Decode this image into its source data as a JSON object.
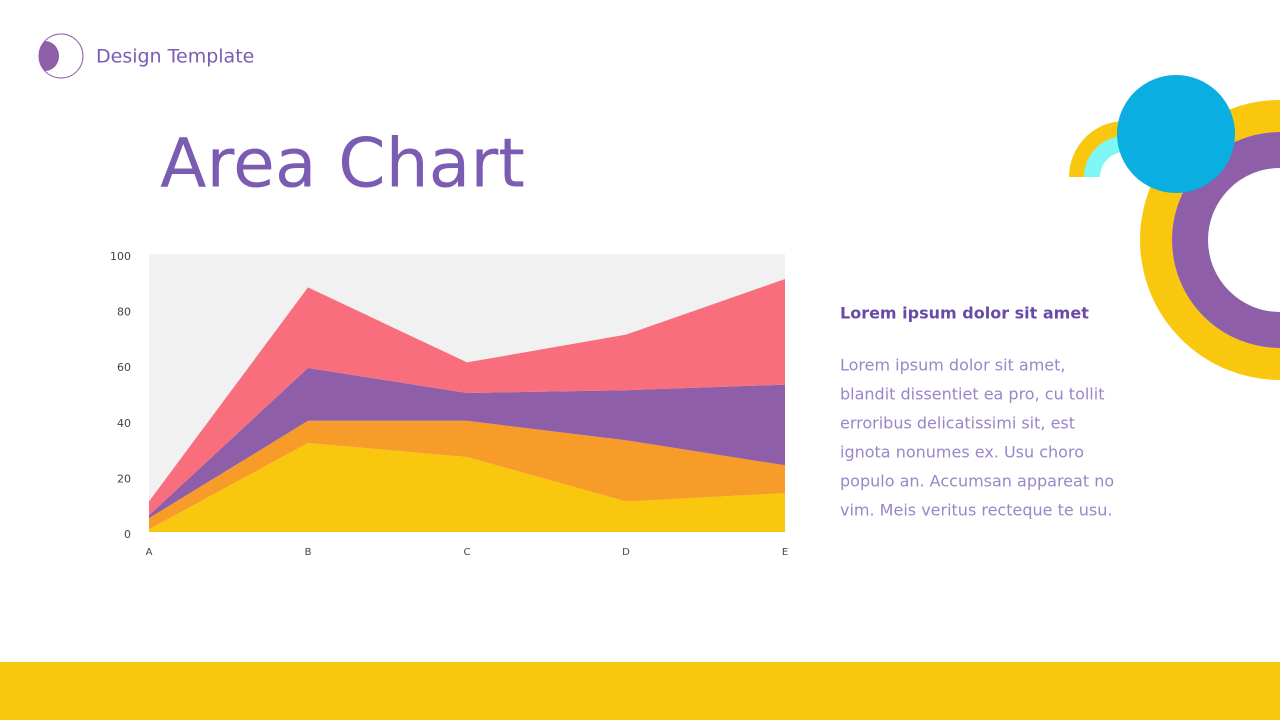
{
  "header": {
    "brand": "Design Template"
  },
  "chart_data": {
    "type": "stacked-area",
    "title": "Area Chart",
    "categories": [
      "A",
      "B",
      "C",
      "D",
      "E"
    ],
    "series": [
      {
        "color": "#f9c80e",
        "values": [
          1,
          32,
          27,
          11,
          14
        ]
      },
      {
        "color": "#f79c28",
        "values": [
          4,
          8,
          13,
          22,
          10
        ]
      },
      {
        "color": "#8e5ea9",
        "values": [
          1,
          19,
          10,
          18,
          29
        ]
      },
      {
        "color": "#f96e7c",
        "values": [
          5,
          29,
          11,
          20,
          38
        ]
      }
    ],
    "ylim": [
      0,
      100
    ],
    "yticks": [
      0,
      20,
      40,
      60,
      80,
      100
    ],
    "grid": false
  },
  "sidebar": {
    "heading": "Lorem ipsum dolor sit amet",
    "body": [
      "Lorem ipsum dolor sit amet,",
      "blandit dissentiet ea pro, cu tollit",
      "erroribus delicatissimi sit, est",
      "ignota nonumes ex. Usu choro",
      "populo an. Accumsan appareat no",
      "vim. Meis veritus recteque te usu."
    ]
  }
}
